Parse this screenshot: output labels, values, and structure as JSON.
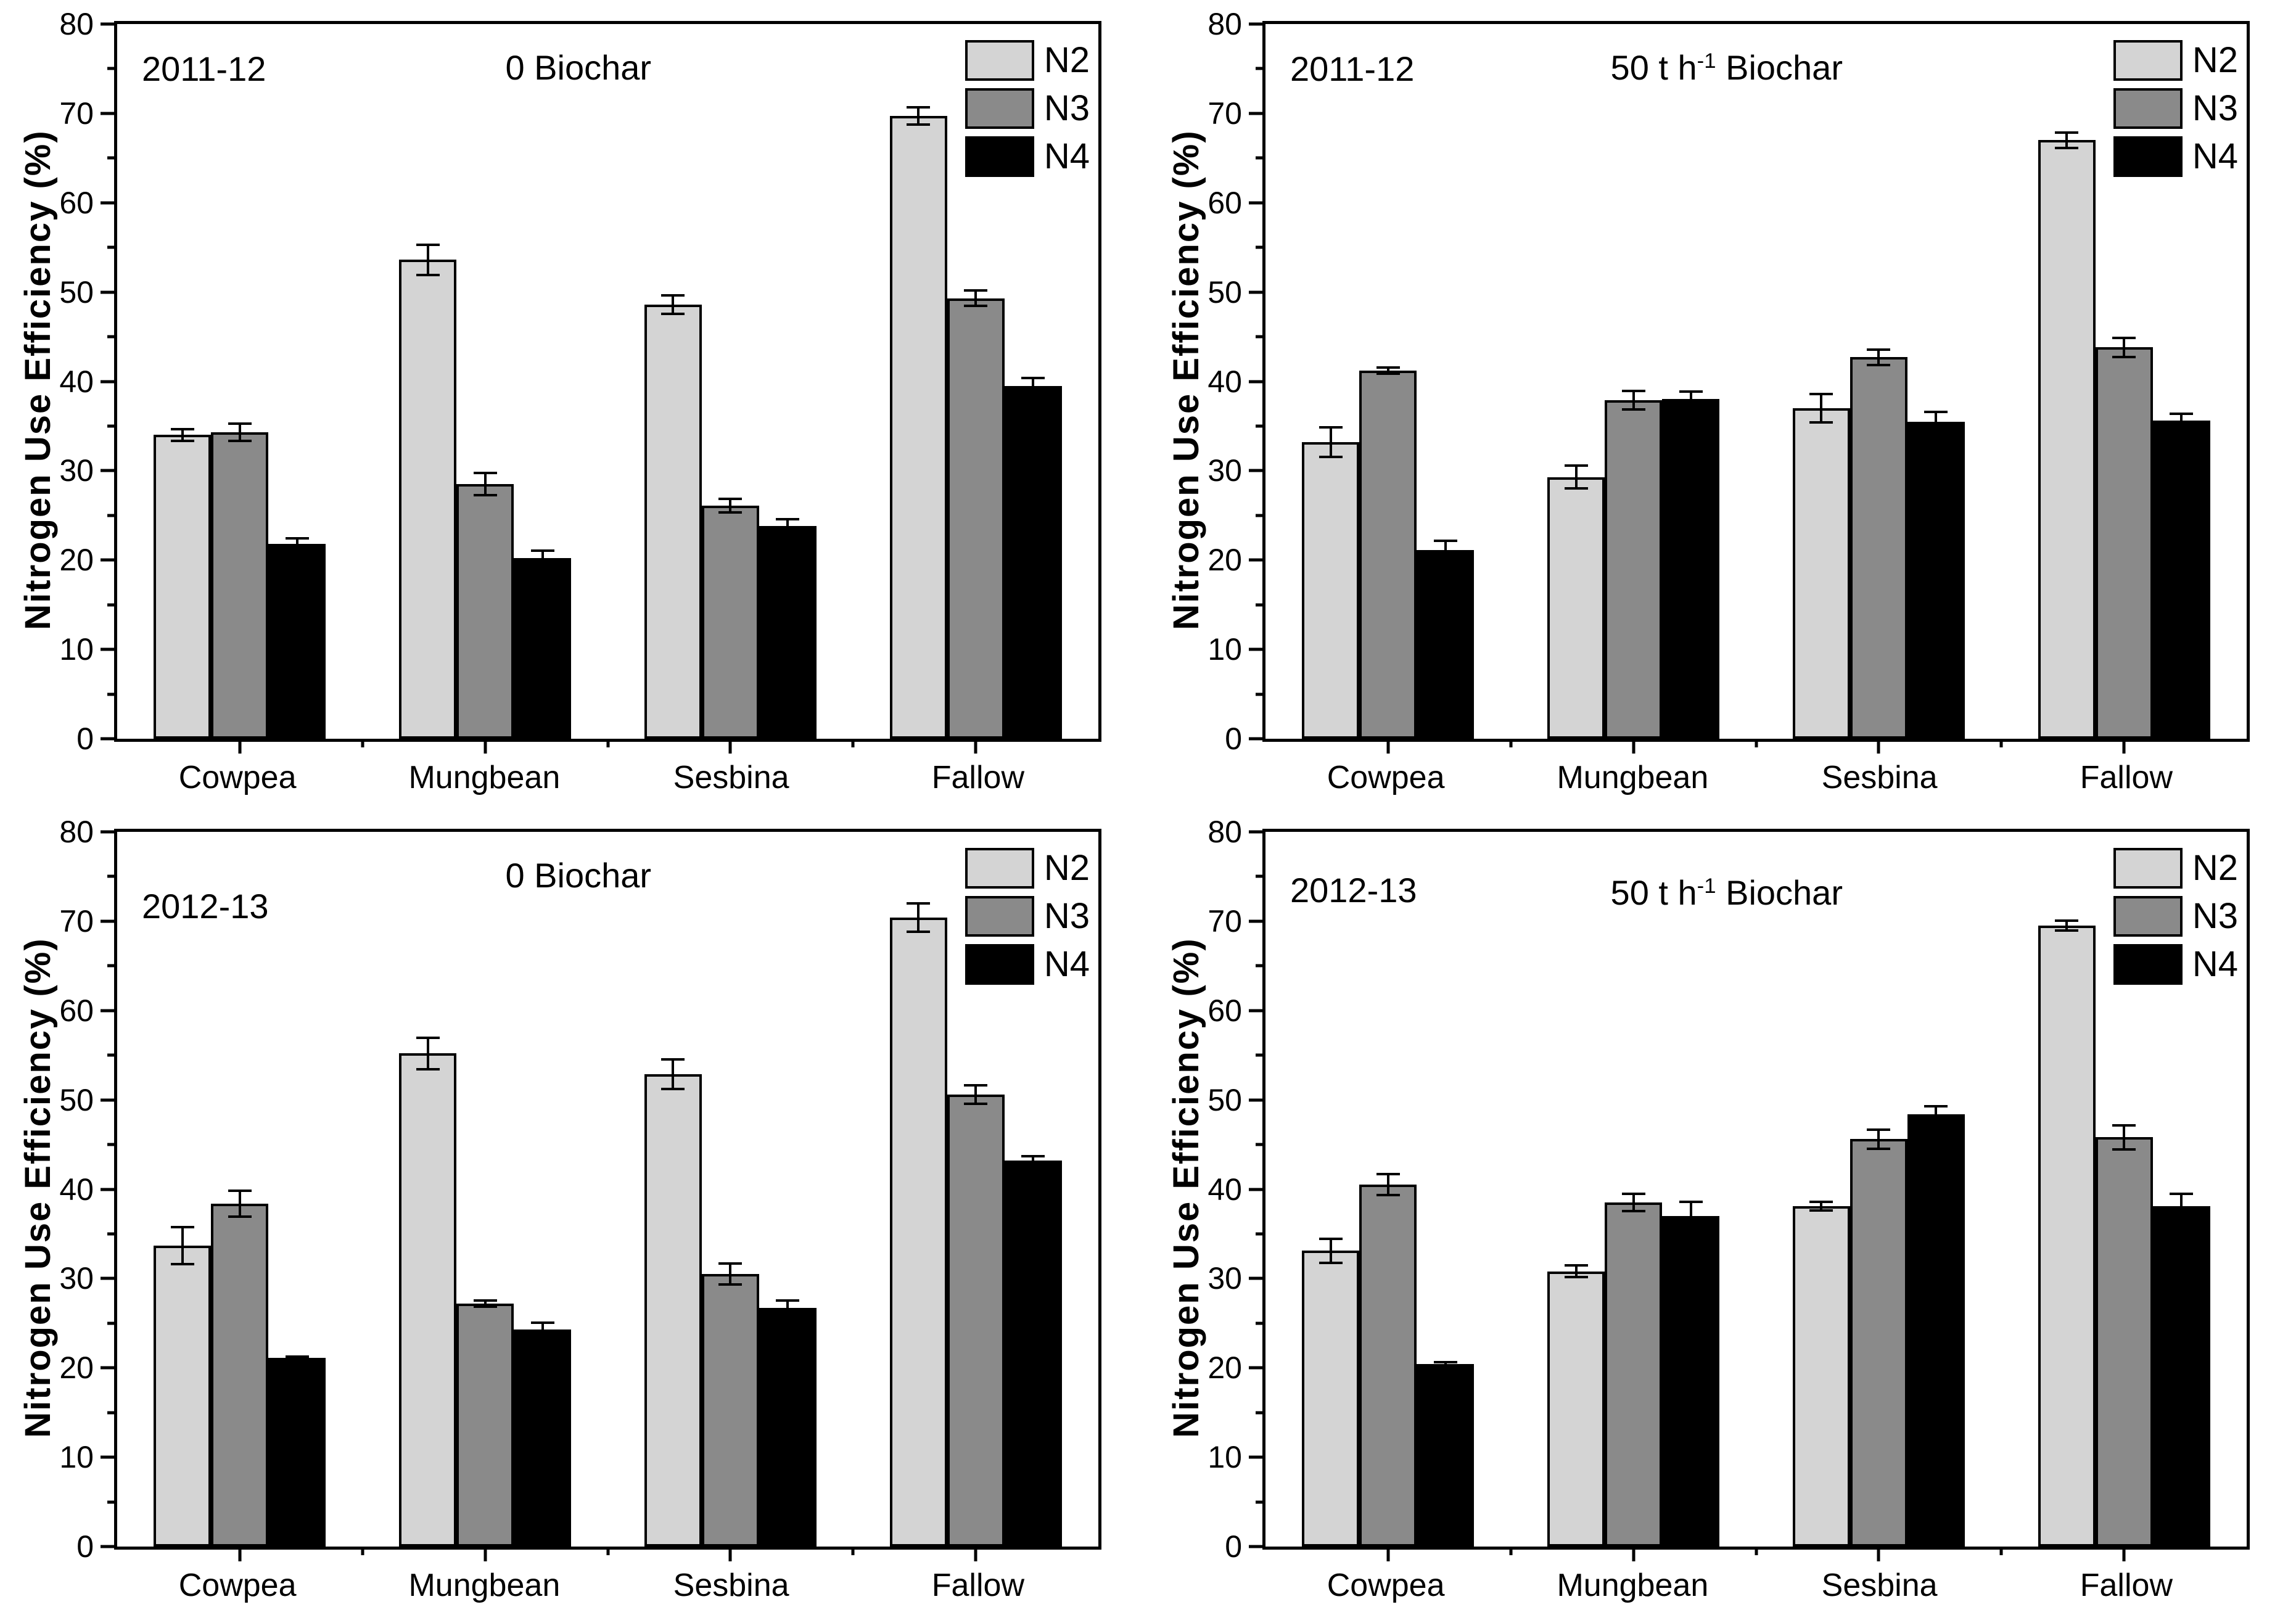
{
  "figure": {
    "ylabel": "Nitrogen Use Efficiency (%)",
    "categories": [
      "Cowpea",
      "Mungbean",
      "Sesbina",
      "Fallow"
    ],
    "series_names": [
      "N2",
      "N3",
      "N4"
    ],
    "colors": {
      "N2": "#d4d4d4",
      "N3": "#8a8a8a",
      "N4": "#000000",
      "axis": "#000000",
      "background": "#ffffff"
    }
  },
  "chart_data": [
    {
      "type": "bar",
      "year_label": "2011-12",
      "title": {
        "prefix": "0 Biochar",
        "sup": "",
        "suffix": ""
      },
      "ylabel": "Nitrogen Use Efficiency (%)",
      "ylim": [
        0,
        80
      ],
      "yticks": [
        0,
        10,
        20,
        30,
        40,
        50,
        60,
        70,
        80
      ],
      "minor_step": 5,
      "grid": false,
      "legend_position": "top-right",
      "categories": [
        "Cowpea",
        "Mungbean",
        "Sesbina",
        "Fallow"
      ],
      "series": [
        {
          "name": "N2",
          "color": "#d4d4d4",
          "values": [
            34.0,
            53.6,
            48.6,
            69.7
          ],
          "errors": [
            0.8,
            1.8,
            1.2,
            1.1
          ]
        },
        {
          "name": "N3",
          "color": "#8a8a8a",
          "values": [
            34.3,
            28.5,
            26.1,
            49.3
          ],
          "errors": [
            1.1,
            1.4,
            0.9,
            1.0
          ]
        },
        {
          "name": "N4",
          "color": "#000000",
          "values": [
            21.8,
            20.2,
            23.8,
            39.5
          ],
          "errors": [
            0.8,
            1.0,
            0.9,
            1.0
          ]
        }
      ]
    },
    {
      "type": "bar",
      "year_label": "2011-12",
      "title": {
        "prefix": "50 t h",
        "sup": "-1",
        "suffix": " Biochar"
      },
      "ylabel": "Nitrogen Use Efficiency (%)",
      "ylim": [
        0,
        80
      ],
      "yticks": [
        0,
        10,
        20,
        30,
        40,
        50,
        60,
        70,
        80
      ],
      "minor_step": 5,
      "grid": false,
      "legend_position": "top-right",
      "categories": [
        "Cowpea",
        "Mungbean",
        "Sesbina",
        "Fallow"
      ],
      "series": [
        {
          "name": "N2",
          "color": "#d4d4d4",
          "values": [
            33.2,
            29.3,
            37.0,
            67.0
          ],
          "errors": [
            1.8,
            1.4,
            1.7,
            1.0
          ]
        },
        {
          "name": "N3",
          "color": "#8a8a8a",
          "values": [
            41.2,
            37.9,
            42.7,
            43.8
          ],
          "errors": [
            0.5,
            1.2,
            1.0,
            1.2
          ]
        },
        {
          "name": "N4",
          "color": "#000000",
          "values": [
            21.1,
            38.0,
            35.5,
            35.6
          ],
          "errors": [
            1.2,
            1.0,
            1.2,
            0.9
          ]
        }
      ]
    },
    {
      "type": "bar",
      "year_label": "2012-13",
      "title": {
        "prefix": "0 Biochar",
        "sup": "",
        "suffix": ""
      },
      "ylabel": "Nitrogen Use Efficiency (%)",
      "ylim": [
        0,
        80
      ],
      "yticks": [
        0,
        10,
        20,
        30,
        40,
        50,
        60,
        70,
        80
      ],
      "minor_step": 5,
      "grid": false,
      "legend_position": "top-right",
      "categories": [
        "Cowpea",
        "Mungbean",
        "Sesbina",
        "Fallow"
      ],
      "series": [
        {
          "name": "N2",
          "color": "#d4d4d4",
          "values": [
            33.7,
            55.2,
            52.9,
            70.4
          ],
          "errors": [
            2.2,
            1.9,
            1.8,
            1.7
          ]
        },
        {
          "name": "N3",
          "color": "#8a8a8a",
          "values": [
            38.4,
            27.2,
            30.5,
            50.6
          ],
          "errors": [
            1.6,
            0.5,
            1.3,
            1.2
          ]
        },
        {
          "name": "N4",
          "color": "#000000",
          "values": [
            21.1,
            24.3,
            26.7,
            43.2
          ],
          "errors": [
            0.3,
            0.9,
            1.0,
            0.6
          ]
        }
      ]
    },
    {
      "type": "bar",
      "year_label": "2012-13",
      "title": {
        "prefix": "50 t h",
        "sup": "-1",
        "suffix": " Biochar"
      },
      "ylabel": "Nitrogen Use Efficiency (%)",
      "ylim": [
        0,
        80
      ],
      "yticks": [
        0,
        10,
        20,
        30,
        40,
        50,
        60,
        70,
        80
      ],
      "minor_step": 5,
      "grid": false,
      "legend_position": "top-right",
      "categories": [
        "Cowpea",
        "Mungbean",
        "Sesbina",
        "Fallow"
      ],
      "series": [
        {
          "name": "N2",
          "color": "#d4d4d4",
          "values": [
            33.1,
            30.8,
            38.1,
            69.5
          ],
          "errors": [
            1.5,
            0.8,
            0.6,
            0.7
          ]
        },
        {
          "name": "N3",
          "color": "#8a8a8a",
          "values": [
            40.5,
            38.5,
            45.6,
            45.8
          ],
          "errors": [
            1.3,
            1.1,
            1.2,
            1.5
          ]
        },
        {
          "name": "N4",
          "color": "#000000",
          "values": [
            20.4,
            37.0,
            48.4,
            38.1
          ],
          "errors": [
            0.4,
            1.7,
            1.0,
            1.5
          ]
        }
      ]
    }
  ]
}
